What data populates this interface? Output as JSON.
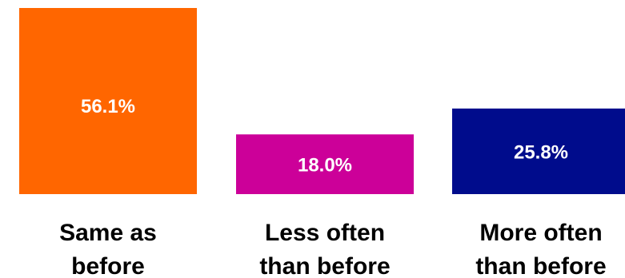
{
  "chart_data": {
    "type": "bar",
    "title": "",
    "xlabel": "",
    "ylabel": "",
    "ylim": [
      0,
      60
    ],
    "grid": false,
    "categories": [
      [
        "Same as",
        "before"
      ],
      [
        "Less often",
        "than before"
      ],
      [
        "More often",
        "than before"
      ]
    ],
    "values": [
      56.1,
      18.0,
      25.8
    ],
    "value_labels": [
      "56.1%",
      "18.0%",
      "25.8%"
    ],
    "colors": [
      "#FF6600",
      "#CC0099",
      "#000C8C"
    ]
  }
}
